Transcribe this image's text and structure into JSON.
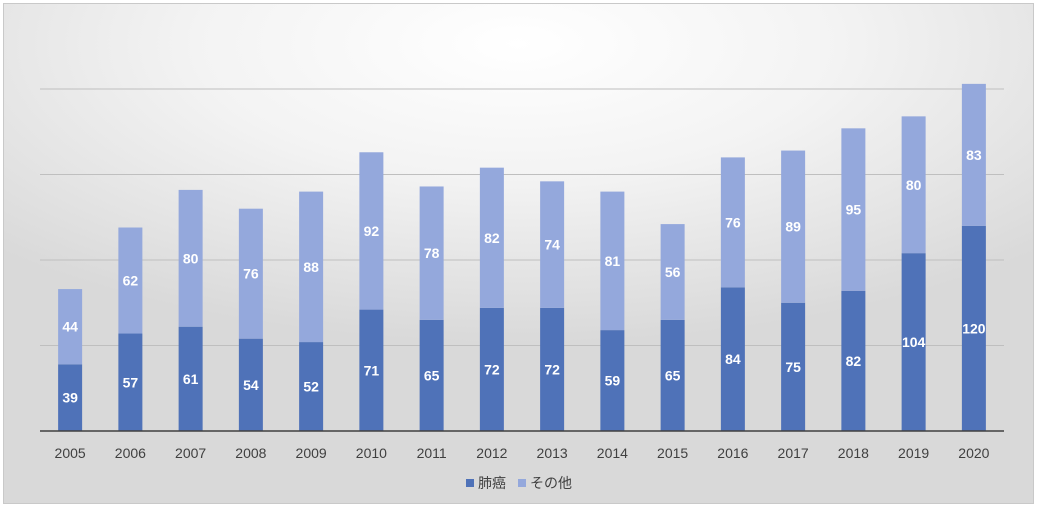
{
  "chart_data": {
    "type": "bar",
    "stacked": true,
    "categories": [
      "2005",
      "2006",
      "2007",
      "2008",
      "2009",
      "2010",
      "2011",
      "2012",
      "2013",
      "2014",
      "2015",
      "2016",
      "2017",
      "2018",
      "2019",
      "2020"
    ],
    "series": [
      {
        "name": "肺癌",
        "color": "#4f72b8",
        "values": [
          39,
          57,
          61,
          54,
          52,
          71,
          65,
          72,
          72,
          59,
          65,
          84,
          75,
          82,
          104,
          120
        ]
      },
      {
        "name": "その他",
        "color": "#94a8dc",
        "values": [
          44,
          62,
          80,
          76,
          88,
          92,
          78,
          82,
          74,
          81,
          56,
          76,
          89,
          95,
          80,
          83
        ]
      }
    ],
    "ylim": [
      0,
      200
    ],
    "gridlines": [
      0,
      50,
      100,
      150,
      200
    ],
    "grid": true,
    "legend_position": "bottom"
  }
}
